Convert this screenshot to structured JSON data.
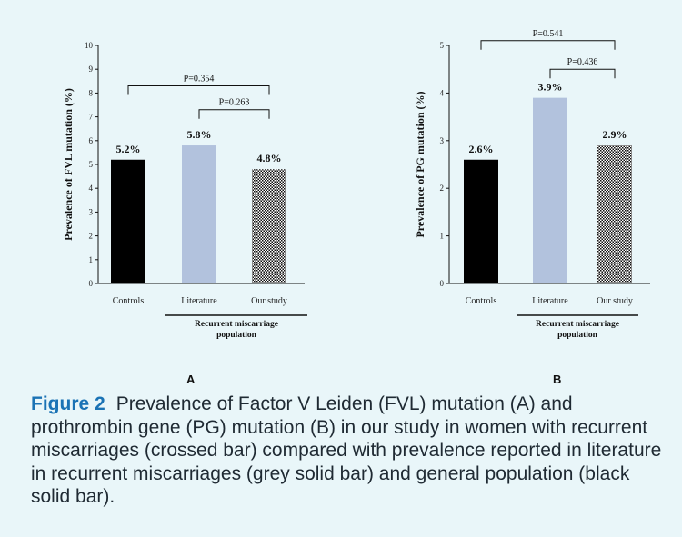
{
  "figure": {
    "caption_label": "Figure 2",
    "caption_text": "Prevalence of Factor V Leiden (FVL) mutation (A) and prothrombin gene (PG) mutation (B) in our study in women with recurrent miscarriages (crossed bar) compared with prevalence reported in literature in recurrent miscarriages (grey solid bar) and general population (black solid bar)."
  },
  "chart_data": [
    {
      "type": "bar",
      "panel_label": "A",
      "ylabel": "Prevalence of FVL mutation (%)",
      "ylim": [
        0,
        10
      ],
      "yticks": [
        0,
        1,
        2,
        3,
        4,
        5,
        6,
        7,
        8,
        9,
        10
      ],
      "categories": [
        "Controls",
        "Literature",
        "Our study"
      ],
      "values": [
        5.2,
        5.8,
        4.8
      ],
      "data_labels": [
        "5.2%",
        "5.8%",
        "4.8%"
      ],
      "bar_styles": [
        "black",
        "light-blue",
        "crosshatch"
      ],
      "colors": {
        "black": "#000000",
        "light-blue": "#b2c2dd"
      },
      "group_label": "Recurrent miscarriage population",
      "comparisons": [
        {
          "from": "Controls",
          "to": "Our study",
          "label": "P=0.354",
          "level": 8.3
        },
        {
          "from": "Literature",
          "to": "Our study",
          "label": "P=0.263",
          "level": 7.3
        }
      ]
    },
    {
      "type": "bar",
      "panel_label": "B",
      "ylabel": "Prevalence of PG mutation (%)",
      "ylim": [
        0,
        5
      ],
      "yticks": [
        0,
        1,
        2,
        3,
        4,
        5
      ],
      "categories": [
        "Controls",
        "Literature",
        "Our study"
      ],
      "values": [
        2.6,
        3.9,
        2.9
      ],
      "data_labels": [
        "2.6%",
        "3.9%",
        "2.9%"
      ],
      "bar_styles": [
        "black",
        "light-blue",
        "crosshatch"
      ],
      "colors": {
        "black": "#000000",
        "light-blue": "#b2c2dd"
      },
      "group_label": "Recurrent miscarriage population",
      "comparisons": [
        {
          "from": "Controls",
          "to": "Our study",
          "label": "P=0.541",
          "level": 5.1
        },
        {
          "from": "Literature",
          "to": "Our study",
          "label": "P=0.436",
          "level": 4.5
        }
      ]
    }
  ]
}
